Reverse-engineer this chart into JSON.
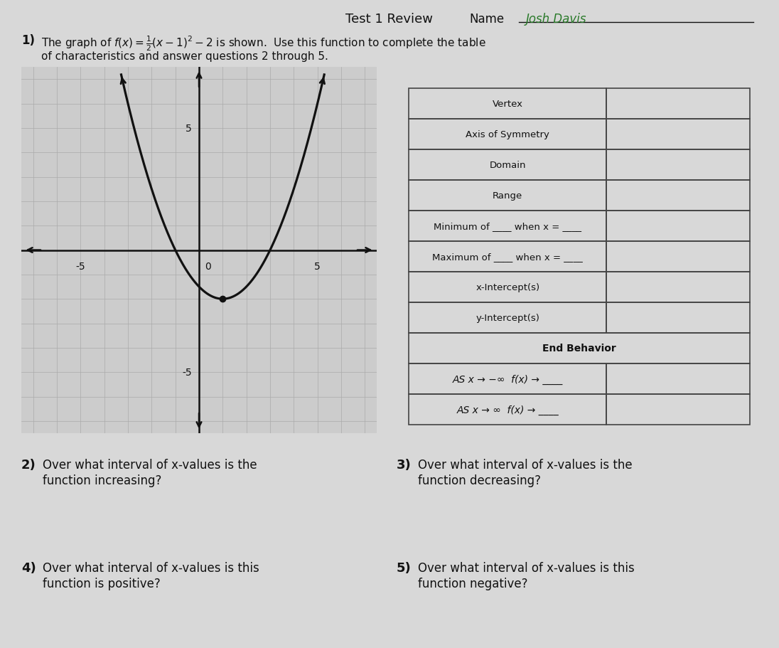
{
  "bg_color": "#d8d8d8",
  "graph_bg": "#d0d0d0",
  "text_color": "#111111",
  "curve_color": "#111111",
  "grid_color": "#aaaaaa",
  "axis_color": "#111111",
  "table_border_color": "#444444",
  "name_color": "#2a7a2a",
  "title_line1": "The graph of $f(x) = \\frac{1}{2}(x-1)^2 - 2$ is shown.  Use this function to complete the table",
  "title_line2": "of characteristics and answer questions 2 through 5.",
  "name_value": "Josh Davis",
  "table_rows": [
    {
      "label": "Vertex",
      "merged": false
    },
    {
      "label": "Axis of Symmetry",
      "merged": false
    },
    {
      "label": "Domain",
      "merged": false
    },
    {
      "label": "Range",
      "merged": false
    },
    {
      "label": "Minimum of ____ when x = ____",
      "merged": false
    },
    {
      "label": "Maximum of ____ when x = ____",
      "merged": false
    },
    {
      "label": "x-Intercept(s)",
      "merged": false
    },
    {
      "label": "y-Intercept(s)",
      "merged": false
    },
    {
      "label": "End Behavior",
      "merged": true
    },
    {
      "label": "AS x → −∞  f(x) → ____",
      "merged": false
    },
    {
      "label": "AS x → ∞  f(x) → ____",
      "merged": false
    }
  ],
  "q2_num": "2)",
  "q2_text": "Over what interval of x-values is the\nfunction increasing?",
  "q3_num": "3)",
  "q3_text": "Over what interval of x-values is the\nfunction decreasing?",
  "q4_num": "4)",
  "q4_text": "Over what interval of x-values is this\nfunction is positive?",
  "q5_num": "5)",
  "q5_text": "Over what interval of x-values is this\nfunction negative?"
}
